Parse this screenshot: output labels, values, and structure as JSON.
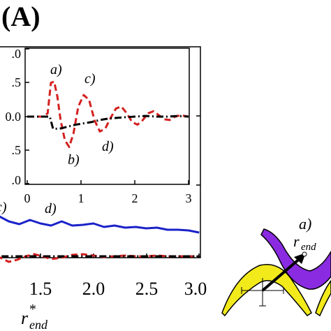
{
  "panel_label": "(A)",
  "chart_data": [
    {
      "type": "line",
      "name_in_figure": "inset",
      "xlim": [
        0,
        3
      ],
      "ylim": [
        -1.0,
        1.0
      ],
      "x_ticks": [
        "0",
        "1",
        "2",
        "3"
      ],
      "y_ticks": [
        ".0",
        ".5",
        "0.0",
        ".5",
        ".0"
      ],
      "annotations": [
        "a)",
        "b)",
        "c)",
        "d)"
      ],
      "series": [
        {
          "color": "#d42020",
          "style": "dashed",
          "x": [
            0.0,
            0.3,
            0.38,
            0.44,
            0.5,
            0.56,
            0.62,
            0.7,
            0.78,
            0.86,
            0.95,
            1.05,
            1.15,
            1.25,
            1.35,
            1.45,
            1.55,
            1.65,
            1.75,
            1.85,
            1.95,
            2.05,
            2.15,
            2.25,
            2.35,
            2.45,
            2.55,
            2.65,
            2.75,
            2.85,
            3.0
          ],
          "y": [
            0.0,
            0.0,
            0.05,
            0.5,
            0.52,
            0.3,
            -0.05,
            -0.35,
            -0.45,
            -0.25,
            0.15,
            0.32,
            0.25,
            -0.05,
            -0.22,
            -0.18,
            -0.02,
            0.12,
            0.15,
            0.05,
            -0.08,
            -0.12,
            -0.05,
            0.05,
            0.08,
            0.02,
            -0.04,
            -0.05,
            0.0,
            0.02,
            0.0
          ]
        },
        {
          "color": "#000000",
          "style": "dashdot",
          "x": [
            0.0,
            0.3,
            0.42,
            0.48,
            0.6,
            0.75,
            0.9,
            1.05,
            1.2,
            1.35,
            1.5,
            1.65,
            1.8,
            2.0,
            2.2,
            2.4,
            2.6,
            2.8,
            3.0
          ],
          "y": [
            0.0,
            0.0,
            0.0,
            -0.18,
            -0.18,
            -0.15,
            -0.12,
            -0.1,
            -0.08,
            -0.05,
            -0.03,
            -0.02,
            -0.01,
            0.0,
            0.01,
            0.0,
            0.0,
            0.01,
            0.0
          ]
        }
      ]
    },
    {
      "type": "line",
      "name_in_figure": "main",
      "xlim": [
        1.0,
        3.0
      ],
      "x_ticks": [
        "1.5",
        "2.0",
        "2.5",
        "3.0"
      ],
      "xlabel_main": "r",
      "xlabel_sup": "*",
      "xlabel_sub": "end",
      "annotations": [
        "c)",
        "d)"
      ],
      "series": [
        {
          "color": "#1a22c8",
          "style": "solid",
          "x": [
            1.0,
            1.05,
            1.1,
            1.2,
            1.3,
            1.4,
            1.5,
            1.6,
            1.7,
            1.8,
            1.9,
            2.0,
            2.1,
            2.2,
            2.3,
            2.4,
            2.5,
            2.6,
            2.7,
            2.8,
            2.9,
            3.0
          ],
          "y": [
            0.42,
            0.56,
            0.58,
            0.5,
            0.46,
            0.52,
            0.47,
            0.44,
            0.5,
            0.44,
            0.45,
            0.47,
            0.42,
            0.44,
            0.41,
            0.42,
            0.4,
            0.41,
            0.38,
            0.38,
            0.37,
            0.34
          ]
        },
        {
          "color": "#d42020",
          "style": "dashed",
          "x": [
            1.0,
            1.05,
            1.12,
            1.2,
            1.28,
            1.36,
            1.44,
            1.52,
            1.6,
            1.7,
            1.8,
            1.9,
            2.0,
            2.1,
            2.2,
            2.3,
            2.4,
            2.5,
            2.6,
            2.7,
            2.8,
            2.9,
            3.0
          ],
          "y": [
            0.05,
            0.04,
            -0.02,
            -0.08,
            -0.05,
            0.0,
            0.03,
            0.0,
            -0.04,
            -0.02,
            0.02,
            0.03,
            0.01,
            -0.01,
            0.0,
            0.01,
            0.0,
            0.0,
            0.01,
            0.0,
            0.0,
            0.0,
            0.0
          ]
        },
        {
          "color": "#000000",
          "style": "dashdot",
          "x": [
            1.0,
            1.5,
            2.0,
            2.5,
            3.0
          ],
          "y": [
            0.0,
            0.0,
            0.0,
            0.0,
            0.0
          ]
        }
      ]
    }
  ],
  "schematic": {
    "label": "a)",
    "r_main": "r",
    "r_sub": "end",
    "colors": {
      "yellow": "#f2ea1a",
      "purple": "#8a2be2",
      "outline": "#000000"
    }
  }
}
